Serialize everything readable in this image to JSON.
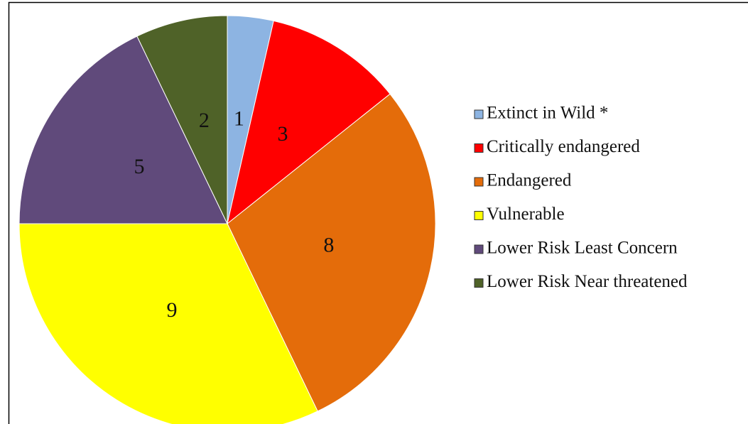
{
  "chart_data": {
    "type": "pie",
    "categories": [
      "Extinct in Wild *",
      "Critically endangered",
      "Endangered",
      "Vulnerable",
      "Lower Risk Least Concern",
      "Lower Risk Near threatened"
    ],
    "values": [
      1,
      3,
      8,
      9,
      5,
      2
    ],
    "colors": [
      "#8db4e2",
      "#ff0000",
      "#e46c0a",
      "#ffff00",
      "#604a7b",
      "#4f6228"
    ],
    "legend": "right"
  }
}
